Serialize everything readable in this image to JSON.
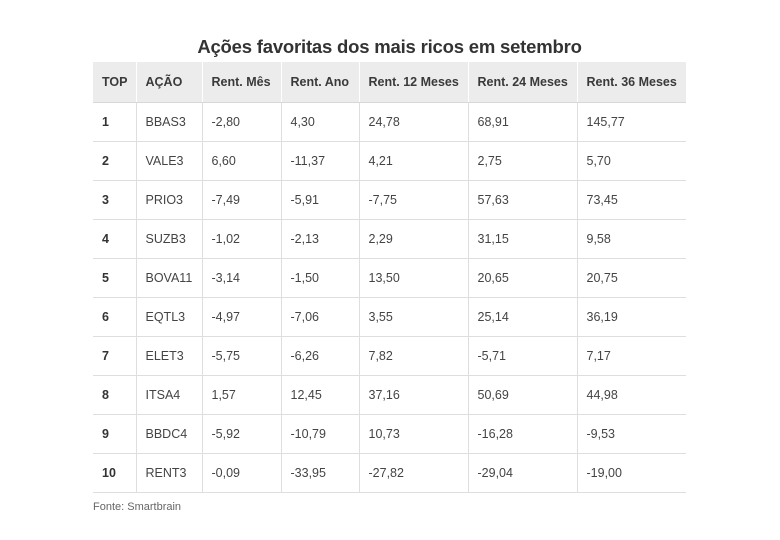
{
  "title": "Ações favoritas dos mais ricos em setembro",
  "table": {
    "headers": [
      "TOP",
      "AÇÃO",
      "Rent. Mês",
      "Rent. Ano",
      "Rent. 12 Meses",
      "Rent. 24 Meses",
      "Rent. 36 Meses"
    ],
    "rows": [
      [
        "1",
        "BBAS3",
        "-2,80",
        "4,30",
        "24,78",
        "68,91",
        "145,77"
      ],
      [
        "2",
        "VALE3",
        "6,60",
        "-11,37",
        "4,21",
        "2,75",
        "5,70"
      ],
      [
        "3",
        "PRIO3",
        "-7,49",
        "-5,91",
        "-7,75",
        "57,63",
        "73,45"
      ],
      [
        "4",
        "SUZB3",
        "-1,02",
        "-2,13",
        "2,29",
        "31,15",
        "9,58"
      ],
      [
        "5",
        "BOVA11",
        "-3,14",
        "-1,50",
        "13,50",
        "20,65",
        "20,75"
      ],
      [
        "6",
        "EQTL3",
        "-4,97",
        "-7,06",
        "3,55",
        "25,14",
        "36,19"
      ],
      [
        "7",
        "ELET3",
        "-5,75",
        "-6,26",
        "7,82",
        "-5,71",
        "7,17"
      ],
      [
        "8",
        "ITSA4",
        "1,57",
        "12,45",
        "37,16",
        "50,69",
        "44,98"
      ],
      [
        "9",
        "BBDC4",
        "-5,92",
        "-10,79",
        "10,73",
        "-16,28",
        "-9,53"
      ],
      [
        "10",
        "RENT3",
        "-0,09",
        "-33,95",
        "-27,82",
        "-29,04",
        "-19,00"
      ]
    ]
  },
  "source": "Fonte: Smartbrain"
}
